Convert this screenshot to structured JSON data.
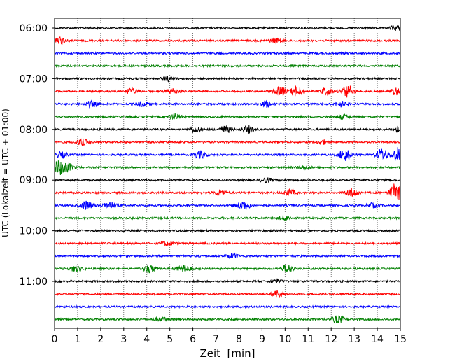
{
  "chart_data": {
    "type": "line",
    "title": "",
    "xlabel": "Zeit  [min]",
    "ylabel": "UTC (Lokalzeit = UTC + 01:00)",
    "xlim": [
      0,
      15
    ],
    "x_ticks": [
      "0",
      "1",
      "2",
      "3",
      "4",
      "5",
      "6",
      "7",
      "8",
      "9",
      "10",
      "11",
      "12",
      "13",
      "14",
      "15"
    ],
    "y_ticks": [
      "06:00",
      "07:00",
      "08:00",
      "09:00",
      "10:00",
      "11:00"
    ],
    "grid": "vertical dotted lines at each minute",
    "trace_colors": [
      "#000000",
      "#ff0000",
      "#0000ff",
      "#008000"
    ],
    "trace_minutes": 15,
    "traces": [
      {
        "start": "06:00",
        "color": "#000000",
        "events": [
          {
            "t": 14.8,
            "amp": 3
          }
        ]
      },
      {
        "start": "06:15",
        "color": "#ff0000",
        "events": [
          {
            "t": 0.2,
            "amp": 5
          },
          {
            "t": 9.6,
            "amp": 3
          }
        ]
      },
      {
        "start": "06:30",
        "color": "#0000ff",
        "events": []
      },
      {
        "start": "06:45",
        "color": "#008000",
        "events": []
      },
      {
        "start": "07:00",
        "color": "#000000",
        "events": [
          {
            "t": 4.9,
            "amp": 3
          }
        ]
      },
      {
        "start": "07:15",
        "color": "#ff0000",
        "events": [
          {
            "t": 3.3,
            "amp": 4
          },
          {
            "t": 5.1,
            "amp": 4
          },
          {
            "t": 9.8,
            "amp": 6
          },
          {
            "t": 10.5,
            "amp": 7
          },
          {
            "t": 11.8,
            "amp": 5
          },
          {
            "t": 12.7,
            "amp": 8
          },
          {
            "t": 14.8,
            "amp": 5
          }
        ]
      },
      {
        "start": "07:30",
        "color": "#0000ff",
        "events": [
          {
            "t": 1.6,
            "amp": 4
          },
          {
            "t": 3.8,
            "amp": 3
          },
          {
            "t": 9.2,
            "amp": 4
          },
          {
            "t": 12.4,
            "amp": 4
          }
        ]
      },
      {
        "start": "07:45",
        "color": "#008000",
        "events": [
          {
            "t": 5.2,
            "amp": 4
          },
          {
            "t": 12.5,
            "amp": 3
          }
        ]
      },
      {
        "start": "08:00",
        "color": "#000000",
        "events": [
          {
            "t": 6.1,
            "amp": 4
          },
          {
            "t": 7.4,
            "amp": 5
          },
          {
            "t": 8.4,
            "amp": 5
          },
          {
            "t": 14.9,
            "amp": 4
          }
        ]
      },
      {
        "start": "08:15",
        "color": "#ff0000",
        "events": [
          {
            "t": 1.2,
            "amp": 4
          },
          {
            "t": 11.6,
            "amp": 3
          }
        ]
      },
      {
        "start": "08:30",
        "color": "#0000ff",
        "events": [
          {
            "t": 0.3,
            "amp": 4
          },
          {
            "t": 6.3,
            "amp": 5
          },
          {
            "t": 12.6,
            "amp": 9
          },
          {
            "t": 14.2,
            "amp": 8
          },
          {
            "t": 14.9,
            "amp": 10
          }
        ]
      },
      {
        "start": "08:45",
        "color": "#008000",
        "events": [
          {
            "t": 0.2,
            "amp": 10
          },
          {
            "t": 0.6,
            "amp": 5
          },
          {
            "t": 10.8,
            "amp": 3
          }
        ]
      },
      {
        "start": "09:00",
        "color": "#000000",
        "events": [
          {
            "t": 9.2,
            "amp": 3
          }
        ]
      },
      {
        "start": "09:15",
        "color": "#ff0000",
        "events": [
          {
            "t": 7.2,
            "amp": 4
          },
          {
            "t": 10.2,
            "amp": 4
          },
          {
            "t": 12.9,
            "amp": 6
          },
          {
            "t": 14.8,
            "amp": 13
          }
        ]
      },
      {
        "start": "09:30",
        "color": "#0000ff",
        "events": [
          {
            "t": 1.4,
            "amp": 6
          },
          {
            "t": 2.4,
            "amp": 5
          },
          {
            "t": 8.2,
            "amp": 7
          },
          {
            "t": 13.8,
            "amp": 3
          }
        ]
      },
      {
        "start": "09:45",
        "color": "#008000",
        "events": [
          {
            "t": 10.0,
            "amp": 3
          }
        ]
      },
      {
        "start": "10:00",
        "color": "#000000",
        "events": []
      },
      {
        "start": "10:15",
        "color": "#ff0000",
        "events": [
          {
            "t": 4.9,
            "amp": 3
          }
        ]
      },
      {
        "start": "10:30",
        "color": "#0000ff",
        "events": [
          {
            "t": 7.7,
            "amp": 3
          }
        ]
      },
      {
        "start": "10:45",
        "color": "#008000",
        "events": [
          {
            "t": 0.9,
            "amp": 4
          },
          {
            "t": 4.1,
            "amp": 5
          },
          {
            "t": 5.6,
            "amp": 5
          },
          {
            "t": 10.1,
            "amp": 6
          }
        ]
      },
      {
        "start": "11:00",
        "color": "#000000",
        "events": [
          {
            "t": 9.6,
            "amp": 3
          }
        ]
      },
      {
        "start": "11:15",
        "color": "#ff0000",
        "events": [
          {
            "t": 9.7,
            "amp": 6
          }
        ]
      },
      {
        "start": "11:30",
        "color": "#0000ff",
        "events": []
      },
      {
        "start": "11:45",
        "color": "#008000",
        "events": [
          {
            "t": 4.6,
            "amp": 3
          },
          {
            "t": 12.3,
            "amp": 5
          }
        ]
      }
    ]
  }
}
